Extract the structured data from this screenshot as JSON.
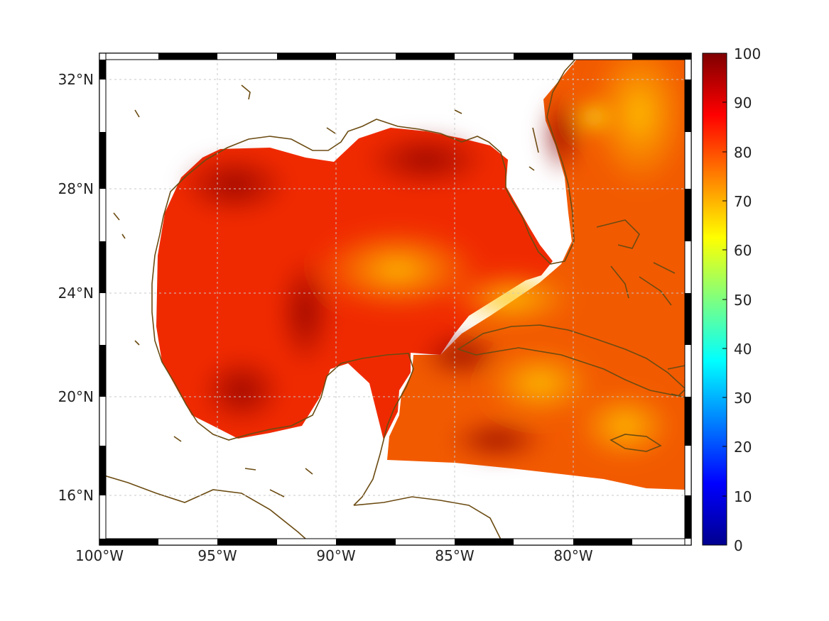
{
  "map": {
    "field": "percentage (0-100) over Gulf of Mexico",
    "lon_range": [
      -100,
      -75
    ],
    "lat_range": [
      14.2,
      33
    ],
    "lon_ticks": [
      "100°W",
      "95°W",
      "90°W",
      "85°W",
      "80°W"
    ],
    "lat_ticks": [
      "32°N",
      "28°N",
      "24°N",
      "20°N",
      "16°N"
    ],
    "grid": true,
    "coast_color": "#6b4b12",
    "land_fill": "#ffffff"
  },
  "colorbar": {
    "ticks": [
      "100",
      "90",
      "80",
      "70",
      "60",
      "50",
      "40",
      "30",
      "20",
      "10",
      "0"
    ],
    "range": [
      0,
      100
    ],
    "colormap": "jet"
  }
}
